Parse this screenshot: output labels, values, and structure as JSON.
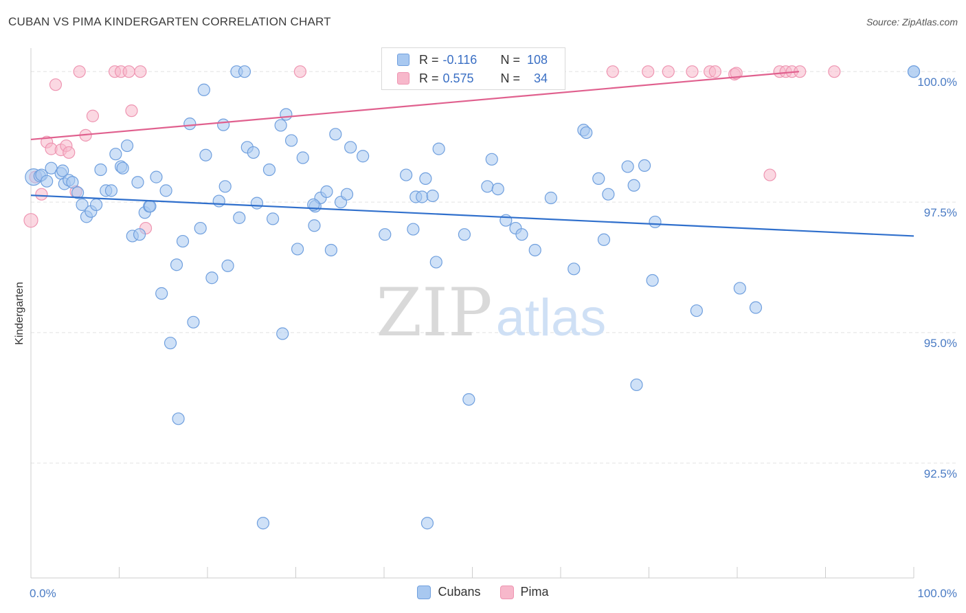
{
  "header": {
    "title": "CUBAN VS PIMA KINDERGARTEN CORRELATION CHART",
    "source": "Source: ZipAtlas.com"
  },
  "watermark": {
    "zip": "ZIP",
    "atlas": "atlas"
  },
  "legend": {
    "rows": [
      {
        "r_label": "R =",
        "r_value": "-0.116",
        "n_label": "N =",
        "n_value": "108"
      },
      {
        "r_label": "R =",
        "r_value": "0.575",
        "n_label": "N =",
        "n_value": "34"
      }
    ]
  },
  "bottom_legend": {
    "cubans": "Cubans",
    "pima": "Pima"
  },
  "colors": {
    "blue_fill": "#a8c8f0",
    "blue_stroke": "#6f9fde",
    "blue_line": "#2f6fcc",
    "pink_fill": "#f7b8cb",
    "pink_stroke": "#ee94b1",
    "pink_line": "#e0608e",
    "grid": "#e2e2e2",
    "axis_text": "#4a7bc4"
  },
  "chart_data": {
    "type": "scatter",
    "title": "CUBAN VS PIMA KINDERGARTEN CORRELATION CHART",
    "xlabel": "",
    "ylabel": "Kindergarten",
    "xlim": [
      0,
      100
    ],
    "ylim": [
      90.3,
      100.45
    ],
    "x_tick_labels": [
      {
        "value": 0,
        "label": "0.0%"
      },
      {
        "value": 100,
        "label": "100.0%"
      }
    ],
    "y_ticks": [
      {
        "value": 92.5,
        "label": "92.5%"
      },
      {
        "value": 95.0,
        "label": "95.0%"
      },
      {
        "value": 97.5,
        "label": "97.5%"
      },
      {
        "value": 100.0,
        "label": "100.0%"
      }
    ],
    "grid": true,
    "series": [
      {
        "name": "Cubans",
        "color": "#6f9fde",
        "trend": {
          "x": [
            0,
            100
          ],
          "y": [
            97.63,
            96.85
          ]
        },
        "points": [
          [
            0.3,
            97.98
          ],
          [
            1.0,
            98.0
          ],
          [
            1.2,
            98.02
          ],
          [
            1.8,
            97.9
          ],
          [
            2.3,
            98.15
          ],
          [
            3.4,
            98.05
          ],
          [
            3.6,
            98.1
          ],
          [
            3.8,
            97.85
          ],
          [
            4.3,
            97.92
          ],
          [
            4.7,
            97.88
          ],
          [
            5.3,
            97.68
          ],
          [
            5.8,
            97.45
          ],
          [
            6.3,
            97.22
          ],
          [
            6.8,
            97.32
          ],
          [
            7.4,
            97.45
          ],
          [
            7.9,
            98.12
          ],
          [
            8.5,
            97.72
          ],
          [
            9.1,
            97.72
          ],
          [
            9.6,
            98.42
          ],
          [
            10.2,
            98.18
          ],
          [
            10.4,
            98.15
          ],
          [
            10.9,
            98.58
          ],
          [
            11.5,
            96.85
          ],
          [
            12.1,
            97.88
          ],
          [
            12.3,
            96.88
          ],
          [
            12.9,
            97.3
          ],
          [
            13.4,
            97.42
          ],
          [
            13.5,
            97.42
          ],
          [
            14.2,
            97.98
          ],
          [
            14.8,
            95.75
          ],
          [
            15.3,
            97.72
          ],
          [
            15.8,
            94.8
          ],
          [
            16.5,
            96.3
          ],
          [
            16.7,
            93.35
          ],
          [
            17.2,
            96.75
          ],
          [
            18.0,
            99.0
          ],
          [
            18.4,
            95.2
          ],
          [
            19.2,
            97.0
          ],
          [
            19.6,
            99.65
          ],
          [
            19.8,
            98.4
          ],
          [
            20.5,
            96.05
          ],
          [
            21.3,
            97.52
          ],
          [
            21.8,
            98.98
          ],
          [
            22.0,
            97.8
          ],
          [
            22.3,
            96.28
          ],
          [
            23.3,
            100.0
          ],
          [
            23.6,
            97.2
          ],
          [
            24.2,
            100.0
          ],
          [
            24.5,
            98.55
          ],
          [
            25.2,
            98.45
          ],
          [
            25.6,
            97.48
          ],
          [
            26.3,
            91.35
          ],
          [
            27.0,
            98.12
          ],
          [
            27.4,
            97.18
          ],
          [
            28.3,
            98.97
          ],
          [
            28.5,
            94.98
          ],
          [
            28.9,
            99.18
          ],
          [
            29.5,
            98.68
          ],
          [
            30.2,
            96.6
          ],
          [
            30.8,
            98.35
          ],
          [
            32.1,
            97.05
          ],
          [
            32.2,
            97.42
          ],
          [
            32.8,
            97.58
          ],
          [
            33.5,
            97.7
          ],
          [
            34.0,
            96.58
          ],
          [
            34.5,
            98.8
          ],
          [
            35.1,
            97.5
          ],
          [
            35.8,
            97.65
          ],
          [
            36.2,
            98.55
          ],
          [
            37.6,
            98.38
          ],
          [
            40.1,
            96.88
          ],
          [
            42.5,
            98.02
          ],
          [
            43.3,
            96.98
          ],
          [
            43.6,
            97.6
          ],
          [
            44.3,
            97.6
          ],
          [
            44.7,
            97.95
          ],
          [
            44.9,
            91.35
          ],
          [
            45.5,
            97.62
          ],
          [
            45.9,
            96.35
          ],
          [
            46.2,
            98.52
          ],
          [
            49.1,
            96.88
          ],
          [
            49.6,
            93.72
          ],
          [
            51.7,
            97.8
          ],
          [
            52.2,
            98.32
          ],
          [
            52.9,
            97.75
          ],
          [
            53.8,
            97.15
          ],
          [
            54.9,
            97.0
          ],
          [
            55.6,
            96.88
          ],
          [
            57.1,
            96.58
          ],
          [
            58.9,
            97.58
          ],
          [
            61.5,
            96.22
          ],
          [
            62.6,
            98.88
          ],
          [
            62.9,
            98.83
          ],
          [
            64.3,
            97.95
          ],
          [
            64.9,
            96.78
          ],
          [
            65.4,
            97.65
          ],
          [
            67.6,
            98.18
          ],
          [
            68.3,
            97.82
          ],
          [
            68.6,
            94.0
          ],
          [
            69.5,
            98.2
          ],
          [
            70.4,
            96.0
          ],
          [
            70.7,
            97.12
          ],
          [
            75.4,
            95.42
          ],
          [
            80.3,
            95.85
          ],
          [
            82.1,
            95.48
          ],
          [
            100.0,
            100.0
          ],
          [
            100.0,
            100.0
          ],
          [
            32.0,
            97.45
          ]
        ]
      },
      {
        "name": "Pima",
        "color": "#ee94b1",
        "trend": {
          "x": [
            0,
            87
          ],
          "y": [
            98.7,
            100.0
          ]
        },
        "points": [
          [
            0.0,
            97.15
          ],
          [
            0.5,
            97.98
          ],
          [
            1.2,
            97.65
          ],
          [
            1.8,
            98.65
          ],
          [
            2.3,
            98.52
          ],
          [
            2.8,
            99.75
          ],
          [
            3.4,
            98.5
          ],
          [
            4.0,
            98.58
          ],
          [
            4.3,
            98.45
          ],
          [
            5.1,
            97.7
          ],
          [
            5.5,
            100.0
          ],
          [
            6.2,
            98.78
          ],
          [
            7.0,
            99.15
          ],
          [
            9.5,
            100.0
          ],
          [
            10.2,
            100.0
          ],
          [
            11.1,
            100.0
          ],
          [
            11.4,
            99.25
          ],
          [
            12.4,
            100.0
          ],
          [
            13.0,
            97.0
          ],
          [
            30.5,
            100.0
          ],
          [
            65.9,
            100.0
          ],
          [
            69.9,
            100.0
          ],
          [
            72.2,
            100.0
          ],
          [
            74.9,
            100.0
          ],
          [
            76.9,
            100.0
          ],
          [
            77.5,
            100.0
          ],
          [
            79.7,
            99.95
          ],
          [
            79.9,
            99.97
          ],
          [
            83.7,
            98.02
          ],
          [
            84.8,
            100.0
          ],
          [
            85.5,
            100.0
          ],
          [
            86.2,
            100.0
          ],
          [
            87.1,
            100.0
          ],
          [
            91.0,
            100.0
          ]
        ]
      }
    ]
  }
}
